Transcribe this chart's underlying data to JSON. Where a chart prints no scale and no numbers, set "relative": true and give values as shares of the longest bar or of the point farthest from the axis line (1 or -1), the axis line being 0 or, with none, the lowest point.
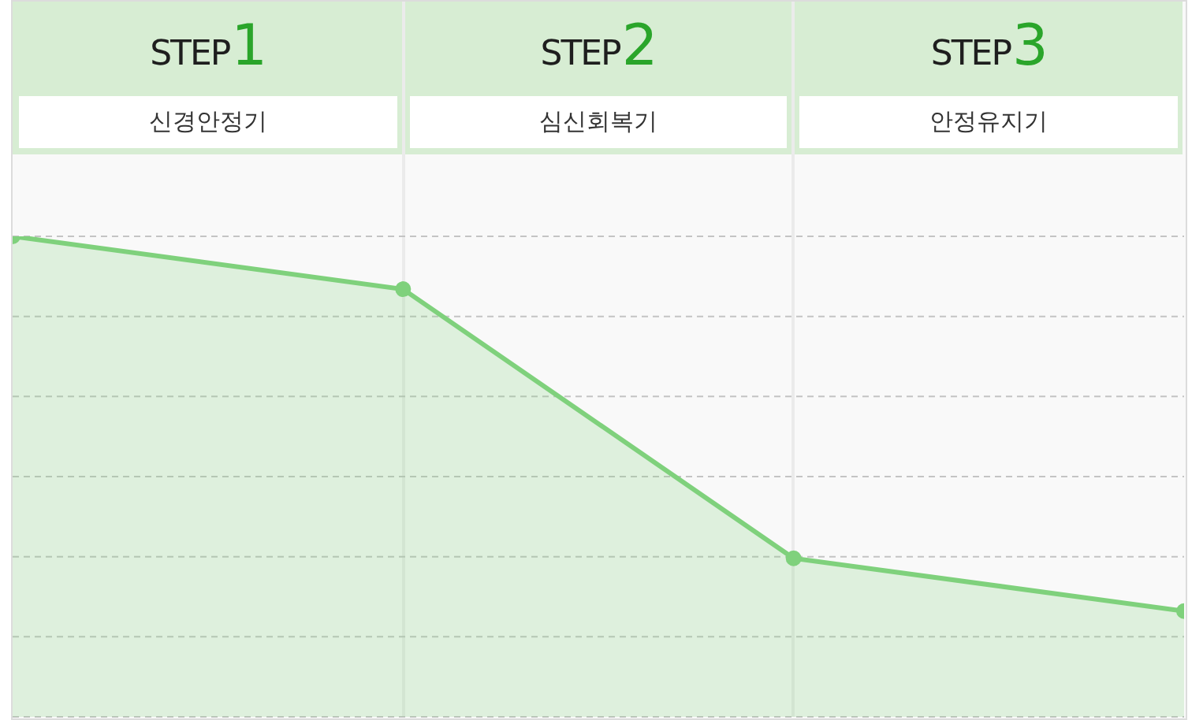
{
  "chart_data": {
    "type": "area",
    "categories": [
      null,
      null,
      null,
      null
    ],
    "series": [
      {
        "color": "#7fd17c",
        "values": [
          1,
          0.89,
          0.33,
          0.22
        ]
      }
    ],
    "relative": true,
    "grid": "y",
    "marker": "circle",
    "annotations": [
      "STEP1",
      "신경안정기",
      "STEP2",
      "심신회복기",
      "STEP3",
      "안정유지기"
    ]
  }
}
